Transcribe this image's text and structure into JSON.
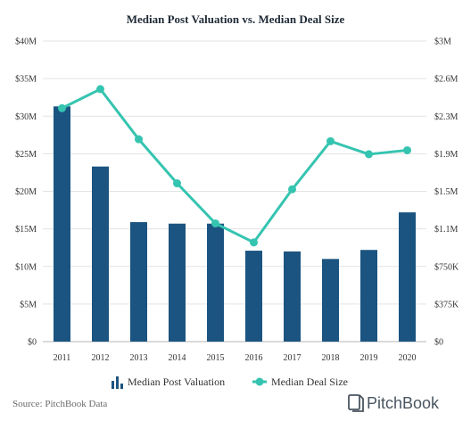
{
  "chart_data": {
    "type": "bar",
    "title": "Median Post Valuation vs. Median Deal Size",
    "categories": [
      "2011",
      "2012",
      "2013",
      "2014",
      "2015",
      "2016",
      "2017",
      "2018",
      "2019",
      "2020"
    ],
    "series": [
      {
        "name": "Median Post Valuation",
        "type": "bar",
        "axis": "left",
        "color": "#1b5480",
        "values": [
          31.3,
          23.3,
          15.9,
          15.7,
          15.7,
          12.1,
          12.0,
          11.0,
          12.2,
          17.2
        ]
      },
      {
        "name": "Median Deal Size",
        "type": "line",
        "axis": "right",
        "color": "#35c4b0",
        "values": [
          2.33,
          2.52,
          2.02,
          1.58,
          1.18,
          0.99,
          1.52,
          2.0,
          1.87,
          1.91
        ]
      }
    ],
    "y_left": {
      "range": [
        0,
        40
      ],
      "ticks": [
        "$0",
        "$5M",
        "$10M",
        "$15M",
        "$20M",
        "$25M",
        "$30M",
        "$35M",
        "$40M"
      ]
    },
    "y_right": {
      "range": [
        0,
        3
      ],
      "ticks": [
        "$0",
        "$375K",
        "$750K",
        "$1.1M",
        "$1.5M",
        "$1.9M",
        "$2.3M",
        "$2.6M",
        "$3M"
      ]
    },
    "grid": true,
    "legend_position": "bottom"
  },
  "footer": {
    "source": "Source: PitchBook Data",
    "brand": "PitchBook"
  }
}
